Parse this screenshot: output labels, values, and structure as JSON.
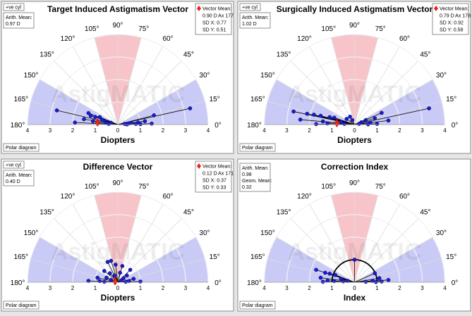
{
  "watermark": "AstigMATIC",
  "colors": {
    "sector_red": "#f7c5c9",
    "sector_blue": "#c9cbf6",
    "point": "#1b1ec2",
    "mean": "#e8231a",
    "grid": "#ffffff"
  },
  "chart_data": [
    {
      "type": "scatter",
      "subtype": "polar-double-angle",
      "title": "Target Induced Astigmatism Vector",
      "xlabel": "Diopters",
      "corner_label": "+ve cyl",
      "footer_button": "Polar diagram",
      "stats": [
        "Arith. Mean:",
        "0.97 D"
      ],
      "vector_legend": [
        "Vector Mean:",
        "0.90 D Ax 177",
        "SD X: 0.77",
        "SD Y: 0.51"
      ],
      "angle_labels": [
        "0°",
        "15°",
        "30°",
        "45°",
        "60°",
        "75°",
        "90°",
        "105°",
        "120°",
        "135°",
        "150°",
        "165°",
        "180°"
      ],
      "radial_ticks": [
        "4",
        "3",
        "2",
        "1",
        "0",
        "1",
        "2",
        "3",
        "4"
      ],
      "rmax": 4,
      "mean_point": [
        -0.9,
        0.09
      ],
      "circle_radius": null,
      "points": [
        [
          -2.7,
          0.63
        ],
        [
          -1.3,
          0.51
        ],
        [
          -1.2,
          0.39
        ],
        [
          -1.0,
          0.34
        ],
        [
          -0.8,
          0.33
        ],
        [
          -1.5,
          0.24
        ],
        [
          -0.7,
          0.22
        ],
        [
          -1.1,
          0.15
        ],
        [
          -0.55,
          0.13
        ],
        [
          -1.9,
          0.09
        ],
        [
          -0.5,
          0.07
        ],
        [
          -0.3,
          0.08
        ],
        [
          -0.9,
          0.05
        ],
        [
          -0.4,
          0.03
        ],
        [
          3.2,
          0.72
        ],
        [
          1.6,
          0.41
        ],
        [
          1.2,
          0.15
        ],
        [
          0.9,
          0.09
        ],
        [
          0.6,
          0.07
        ],
        [
          0.5,
          0.05
        ],
        [
          1.5,
          0.04
        ],
        [
          0.3,
          0.03
        ],
        [
          0.8,
          0.03
        ],
        [
          1.0,
          0.02
        ],
        [
          0.4,
          0.01
        ]
      ]
    },
    {
      "type": "scatter",
      "subtype": "polar-double-angle",
      "title": "Surgically Induced Astigmatism Vector",
      "xlabel": "Diopters",
      "corner_label": "+ve cyl",
      "footer_button": "Polar diagram",
      "stats": [
        "Arith. Mean:",
        "1.02 D"
      ],
      "vector_legend": [
        "Vector Mean:",
        "0.79 D Ax 178",
        "SD X: 0.92",
        "SD Y: 0.58"
      ],
      "angle_labels": [
        "0°",
        "15°",
        "30°",
        "45°",
        "60°",
        "75°",
        "90°",
        "105°",
        "120°",
        "135°",
        "150°",
        "165°",
        "180°"
      ],
      "radial_ticks": [
        "4",
        "3",
        "2",
        "1",
        "0",
        "1",
        "2",
        "3",
        "4"
      ],
      "rmax": 4,
      "mean_point": [
        -0.78,
        0.06
      ],
      "circle_radius": null,
      "points": [
        [
          -2.7,
          0.58
        ],
        [
          -2.1,
          0.48
        ],
        [
          -1.8,
          0.44
        ],
        [
          -1.5,
          0.39
        ],
        [
          -1.1,
          0.33
        ],
        [
          -0.9,
          0.31
        ],
        [
          -2.4,
          0.22
        ],
        [
          -1.4,
          0.14
        ],
        [
          -0.6,
          0.12
        ],
        [
          -0.35,
          0.25
        ],
        [
          -0.2,
          0.35
        ],
        [
          -0.1,
          0.2
        ],
        [
          -1.7,
          0.02
        ],
        [
          -1.2,
          0.05
        ],
        [
          -0.45,
          0.03
        ],
        [
          3.3,
          0.72
        ],
        [
          1.2,
          0.52
        ],
        [
          1.5,
          0.18
        ],
        [
          0.9,
          0.28
        ],
        [
          0.5,
          0.2
        ],
        [
          0.7,
          0.09
        ],
        [
          0.3,
          0.1
        ],
        [
          1.0,
          0.03
        ],
        [
          0.6,
          0.01
        ],
        [
          0.2,
          0.03
        ]
      ]
    },
    {
      "type": "scatter",
      "subtype": "polar-double-angle",
      "title": "Difference Vector",
      "xlabel": "Diopters",
      "corner_label": "+ve cyl",
      "footer_button": "Polar diagram",
      "stats": [
        "Arith. Mean:",
        "0.40 D"
      ],
      "vector_legend": [
        "Vector Mean:",
        "0.12 D Ax 171",
        "SD X: 0.37",
        "SD Y: 0.33"
      ],
      "angle_labels": [
        "0°",
        "15°",
        "30°",
        "45°",
        "60°",
        "75°",
        "90°",
        "105°",
        "120°",
        "135°",
        "150°",
        "165°",
        "180°"
      ],
      "radial_ticks": [
        "4",
        "3",
        "2",
        "1",
        "0",
        "1",
        "2",
        "3",
        "4"
      ],
      "rmax": 4,
      "mean_point": [
        -0.12,
        0.04
      ],
      "circle_radius": null,
      "points": [
        [
          -0.45,
          0.9
        ],
        [
          -0.3,
          0.95
        ],
        [
          -0.1,
          0.78
        ],
        [
          0.2,
          0.72
        ],
        [
          -0.6,
          0.5
        ],
        [
          0.55,
          0.55
        ],
        [
          -0.35,
          0.4
        ],
        [
          0.4,
          0.3
        ],
        [
          -0.15,
          0.3
        ],
        [
          0.1,
          0.42
        ],
        [
          -0.9,
          0.2
        ],
        [
          -0.5,
          0.2
        ],
        [
          0.25,
          0.18
        ],
        [
          0.7,
          0.15
        ],
        [
          -1.3,
          0.06
        ],
        [
          -0.8,
          0.05
        ],
        [
          -0.3,
          0.1
        ],
        [
          0.15,
          0.08
        ],
        [
          0.5,
          0.05
        ],
        [
          1.0,
          0.03
        ],
        [
          -0.6,
          0.02
        ],
        [
          0.35,
          0.02
        ]
      ]
    },
    {
      "type": "scatter",
      "subtype": "polar-double-angle",
      "title": "Correction Index",
      "xlabel": "Index",
      "corner_label": "",
      "footer_button": "Polar diagram",
      "stats": [
        "Arith. Mean:",
        "0.98",
        "Geom. Mean:",
        "0.32"
      ],
      "vector_legend": [],
      "angle_labels": [
        "0°",
        "15°",
        "30°",
        "45°",
        "60°",
        "75°",
        "90°",
        "105°",
        "120°",
        "135°",
        "150°",
        "165°",
        "180°"
      ],
      "radial_ticks": [
        "4",
        "3",
        "2",
        "1",
        "0",
        "1",
        "2",
        "3",
        "4"
      ],
      "rmax": 4,
      "mean_point": null,
      "circle_radius": 1,
      "points": [
        [
          -1.7,
          0.55
        ],
        [
          -1.3,
          0.42
        ],
        [
          -1.1,
          0.38
        ],
        [
          -0.85,
          0.32
        ],
        [
          -1.5,
          0.2
        ],
        [
          -0.6,
          0.15
        ],
        [
          -1.2,
          0.07
        ],
        [
          -0.9,
          0.05
        ],
        [
          -0.5,
          0.04
        ],
        [
          -1.4,
          0.02
        ],
        [
          -0.3,
          0.06
        ],
        [
          0.0,
          1.0
        ],
        [
          0.9,
          0.4
        ],
        [
          1.1,
          0.18
        ],
        [
          1.5,
          0.1
        ],
        [
          0.8,
          0.06
        ],
        [
          1.2,
          0.03
        ],
        [
          0.5,
          0.02
        ],
        [
          0.95,
          0.01
        ]
      ]
    }
  ]
}
